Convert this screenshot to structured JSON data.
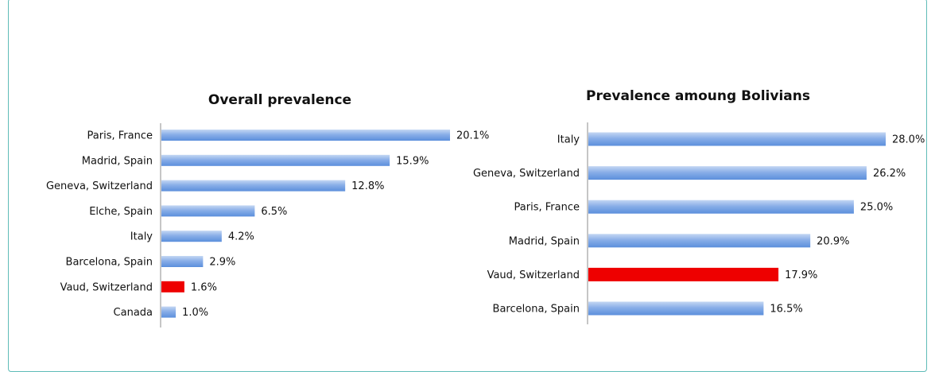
{
  "colors": {
    "bar_blue_light": "#a9c3ec",
    "bar_blue_dark": "#5b8fdc",
    "highlight_red": "#ee0000",
    "frame": "#5fbcb8"
  },
  "chart_data": [
    {
      "type": "bar",
      "orientation": "horizontal",
      "title": "Overall prevalence",
      "categories": [
        "Paris, France",
        "Madrid, Spain",
        "Geneva, Switzerland",
        "Elche, Spain",
        "Italy",
        "Barcelona, Spain",
        "Vaud, Switzerland",
        "Canada"
      ],
      "values": [
        20.1,
        15.9,
        12.8,
        6.5,
        4.2,
        2.9,
        1.6,
        1.0
      ],
      "value_labels": [
        "20.1%",
        "15.9%",
        "12.8%",
        "6.5%",
        "4.2%",
        "2.9%",
        "1.6%",
        "1.0%"
      ],
      "highlight": "Vaud, Switzerland",
      "xlim": [
        0,
        20.1
      ],
      "grid": false,
      "legend": "none"
    },
    {
      "type": "bar",
      "orientation": "horizontal",
      "title": "Prevalence amoung Bolivians",
      "categories": [
        "Italy",
        "Geneva, Switzerland",
        "Paris, France",
        "Madrid, Spain",
        "Vaud, Switzerland",
        "Barcelona, Spain"
      ],
      "values": [
        28.0,
        26.2,
        25.0,
        20.9,
        17.9,
        16.5
      ],
      "value_labels": [
        "28.0%",
        "26.2%",
        "25.0%",
        "20.9%",
        "17.9%",
        "16.5%"
      ],
      "highlight": "Vaud, Switzerland",
      "xlim": [
        0,
        28.0
      ],
      "grid": false,
      "legend": "none"
    }
  ]
}
